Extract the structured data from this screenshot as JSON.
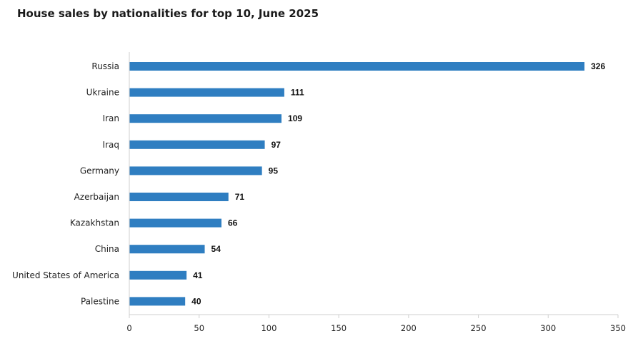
{
  "chart_data": {
    "type": "bar",
    "orientation": "horizontal",
    "title": "House sales by nationalities for top 10, June 2025",
    "categories": [
      "Russia",
      "Ukraine",
      "Iran",
      "Iraq",
      "Germany",
      "Azerbaijan",
      "Kazakhstan",
      "China",
      "United States of America",
      "Palestine"
    ],
    "values": [
      326,
      111,
      109,
      97,
      95,
      71,
      66,
      54,
      41,
      40
    ],
    "xlim": [
      0,
      350
    ],
    "xticks": [
      0,
      50,
      100,
      150,
      200,
      250,
      300,
      350
    ],
    "xlabel": "",
    "ylabel": "",
    "grid": false,
    "legend": "none",
    "bar_color": "#2f7ec1",
    "data_labels": true
  }
}
